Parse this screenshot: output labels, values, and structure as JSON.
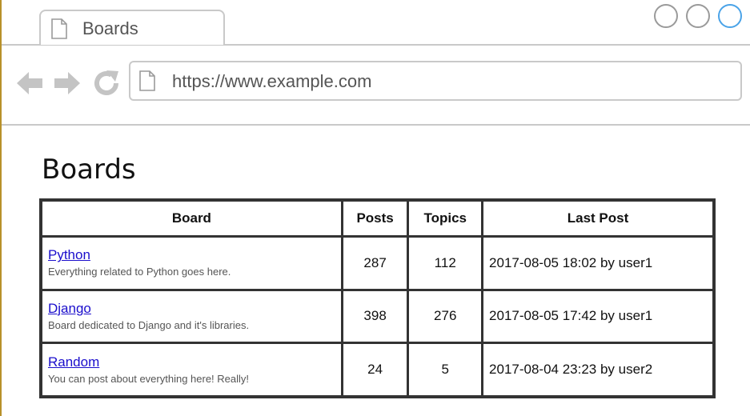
{
  "browser": {
    "tab_title": "Boards",
    "url": "https://www.example.com",
    "window_controls": [
      "minimize",
      "maximize",
      "close"
    ],
    "accent_color": "#4aa3e8"
  },
  "page": {
    "title": "Boards"
  },
  "table": {
    "headers": {
      "board": "Board",
      "posts": "Posts",
      "topics": "Topics",
      "last_post": "Last Post"
    },
    "rows": [
      {
        "name": "Python",
        "description": "Everything related to Python goes here.",
        "posts": "287",
        "topics": "112",
        "last_post": "2017-08-05 18:02 by user1"
      },
      {
        "name": "Django",
        "description": "Board dedicated to Django and it's libraries.",
        "posts": "398",
        "topics": "276",
        "last_post": "2017-08-05 17:42 by user1"
      },
      {
        "name": "Random",
        "description": "You can post about everything here! Really!",
        "posts": "24",
        "topics": "5",
        "last_post": "2017-08-04 23:23 by user2"
      }
    ]
  },
  "colors": {
    "link": "#1a0dcc",
    "border": "#333333",
    "chrome_border": "#c9c9c9"
  }
}
